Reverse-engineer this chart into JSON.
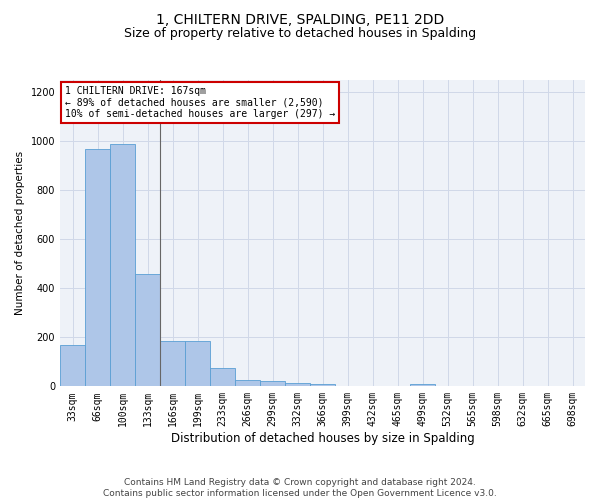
{
  "title": "1, CHILTERN DRIVE, SPALDING, PE11 2DD",
  "subtitle": "Size of property relative to detached houses in Spalding",
  "xlabel": "Distribution of detached houses by size in Spalding",
  "ylabel": "Number of detached properties",
  "categories": [
    "33sqm",
    "66sqm",
    "100sqm",
    "133sqm",
    "166sqm",
    "199sqm",
    "233sqm",
    "266sqm",
    "299sqm",
    "332sqm",
    "366sqm",
    "399sqm",
    "432sqm",
    "465sqm",
    "499sqm",
    "532sqm",
    "565sqm",
    "598sqm",
    "632sqm",
    "665sqm",
    "698sqm"
  ],
  "values": [
    170,
    970,
    990,
    460,
    185,
    185,
    75,
    25,
    20,
    15,
    8,
    0,
    0,
    0,
    10,
    0,
    0,
    0,
    0,
    0,
    0
  ],
  "bar_color": "#aec6e8",
  "bar_edge_color": "#5a9fd4",
  "highlight_index": 4,
  "highlight_line_color": "#666666",
  "annotation_text": "1 CHILTERN DRIVE: 167sqm\n← 89% of detached houses are smaller (2,590)\n10% of semi-detached houses are larger (297) →",
  "annotation_box_color": "#ffffff",
  "annotation_box_edge_color": "#cc0000",
  "ylim": [
    0,
    1250
  ],
  "yticks": [
    0,
    200,
    400,
    600,
    800,
    1000,
    1200
  ],
  "grid_color": "#d0d8e8",
  "background_color": "#eef2f8",
  "footer": "Contains HM Land Registry data © Crown copyright and database right 2024.\nContains public sector information licensed under the Open Government Licence v3.0.",
  "title_fontsize": 10,
  "subtitle_fontsize": 9,
  "xlabel_fontsize": 8.5,
  "ylabel_fontsize": 7.5,
  "tick_fontsize": 7,
  "footer_fontsize": 6.5,
  "annotation_fontsize": 7
}
